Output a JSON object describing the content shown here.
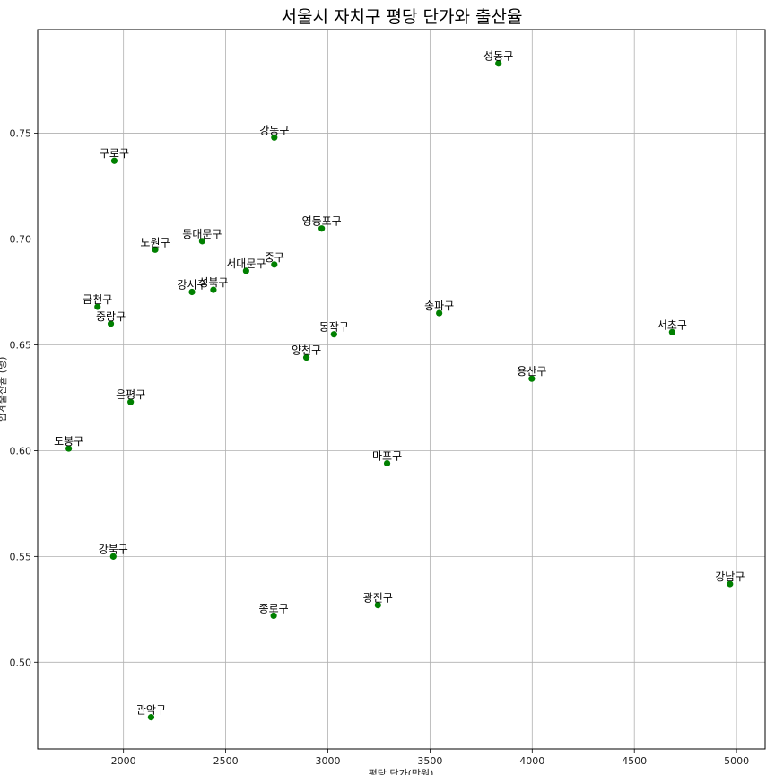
{
  "chart_data": {
    "type": "scatter",
    "title": "서울시 자치구 평당 단가와 출산율",
    "xlabel": "평당 단가(만원)",
    "ylabel": "합계출산율 (명)",
    "xlim": [
      1580,
      5140
    ],
    "ylim": [
      0.459,
      0.799
    ],
    "xticks": [
      2000,
      2500,
      3000,
      3500,
      4000,
      4500,
      5000
    ],
    "yticks": [
      0.5,
      0.55,
      0.6,
      0.65,
      0.7,
      0.75
    ],
    "grid": true,
    "marker_color": "#008000",
    "points": [
      {
        "name": "성동구",
        "x": 3835,
        "y": 0.783
      },
      {
        "name": "강동구",
        "x": 2738,
        "y": 0.748
      },
      {
        "name": "구로구",
        "x": 1955,
        "y": 0.737
      },
      {
        "name": "영등포구",
        "x": 2970,
        "y": 0.705
      },
      {
        "name": "동대문구",
        "x": 2385,
        "y": 0.699
      },
      {
        "name": "노원구",
        "x": 2155,
        "y": 0.695
      },
      {
        "name": "중구",
        "x": 2738,
        "y": 0.688
      },
      {
        "name": "서대문구",
        "x": 2600,
        "y": 0.685
      },
      {
        "name": "성북구",
        "x": 2440,
        "y": 0.676
      },
      {
        "name": "강서구",
        "x": 2335,
        "y": 0.675
      },
      {
        "name": "금천구",
        "x": 1873,
        "y": 0.668
      },
      {
        "name": "송파구",
        "x": 3545,
        "y": 0.665
      },
      {
        "name": "중랑구",
        "x": 1938,
        "y": 0.66
      },
      {
        "name": "서초구",
        "x": 4685,
        "y": 0.656
      },
      {
        "name": "동작구",
        "x": 3030,
        "y": 0.655
      },
      {
        "name": "양천구",
        "x": 2895,
        "y": 0.644
      },
      {
        "name": "용산구",
        "x": 3998,
        "y": 0.634
      },
      {
        "name": "은평구",
        "x": 2035,
        "y": 0.623
      },
      {
        "name": "도봉구",
        "x": 1732,
        "y": 0.601
      },
      {
        "name": "마포구",
        "x": 3290,
        "y": 0.594
      },
      {
        "name": "강북구",
        "x": 1950,
        "y": 0.55
      },
      {
        "name": "강남구",
        "x": 4968,
        "y": 0.537
      },
      {
        "name": "광진구",
        "x": 3245,
        "y": 0.527
      },
      {
        "name": "종로구",
        "x": 2735,
        "y": 0.522
      },
      {
        "name": "관악구",
        "x": 2135,
        "y": 0.474
      }
    ]
  }
}
